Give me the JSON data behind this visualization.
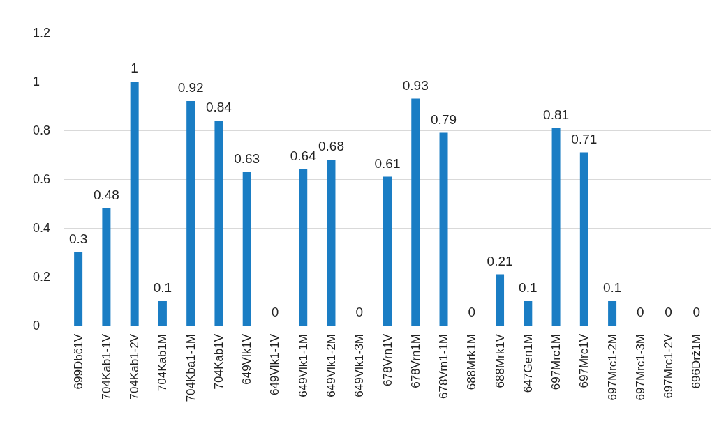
{
  "chart_data": {
    "type": "bar",
    "categories": [
      "699Dbč1V",
      "704Kab1-1V",
      "704Kab1-2V",
      "704Kab1M",
      "704Kba1-1M",
      "704Kab1V",
      "649Vlk1V",
      "649Vlk1-1V",
      "649Vlk1-1M",
      "649Vlk1-2M",
      "649Vlk1-3M",
      "678Vrn1V",
      "678Vrn1M",
      "678Vrn1-1M",
      "688Mrk1M",
      "688Mrk1V",
      "647Gen1M",
      "697Mrc1M",
      "697Mrc1V",
      "697Mrc1-2M",
      "697Mrc1-3M",
      "697Mrc1-2V",
      "696Drž1M"
    ],
    "values": [
      0.3,
      0.48,
      1,
      0.1,
      0.92,
      0.84,
      0.63,
      0,
      0.64,
      0.68,
      0,
      0.61,
      0.93,
      0.79,
      0,
      0.21,
      0.1,
      0.81,
      0.71,
      0.1,
      0,
      0,
      0
    ],
    "color": "#1a7dc4",
    "ylim": [
      0,
      1.2
    ],
    "yticks": [
      0,
      0.2,
      0.4,
      0.6,
      0.8,
      1,
      1.2
    ],
    "grid": "y",
    "data_labels": true
  }
}
